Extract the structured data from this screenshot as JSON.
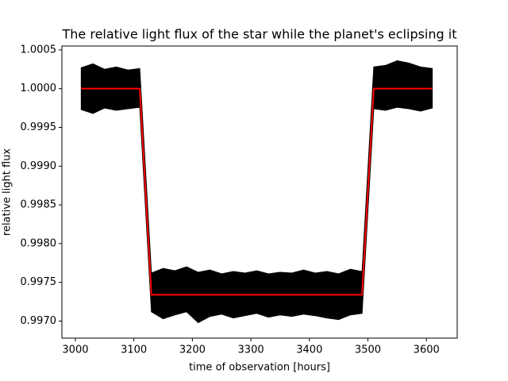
{
  "chart_data": {
    "type": "line",
    "title": "The relative light flux of the star while the planet's eclipsing it",
    "x_label": "time of observation [hours]",
    "y_label": "relative light flux",
    "xlim": [
      2977,
      3652.6
    ],
    "ylim": [
      0.99678,
      1.00055
    ],
    "xticks": [
      3000,
      3100,
      3200,
      3300,
      3400,
      3500,
      3600
    ],
    "yticks": [
      1.0005,
      {
        "value": 1,
        "label": "1.0000"
      },
      0.9995,
      {
        "value": 0.999,
        "label": "0.9990"
      },
      0.9985,
      {
        "value": 0.998,
        "label": "0.9980"
      },
      0.9975,
      {
        "value": 0.997,
        "label": "0.9970"
      }
    ],
    "grid": false,
    "series": [
      {
        "color": "#000000",
        "x": [
          3010,
          3030,
          3050,
          3070,
          3090,
          3110,
          3130,
          3150,
          3170,
          3190,
          3210,
          3230,
          3250,
          3270,
          3290,
          3310,
          3330,
          3350,
          3370,
          3390,
          3410,
          3430,
          3450,
          3470,
          3490,
          3510,
          3530,
          3550,
          3570,
          3590,
          3610
        ],
        "high": [
          1.00027,
          1.00032,
          1.00025,
          1.00028,
          1.00024,
          1.00026,
          0.99762,
          0.99768,
          0.99765,
          0.9977,
          0.99763,
          0.99766,
          0.99761,
          0.99764,
          0.99762,
          0.99765,
          0.99761,
          0.99763,
          0.99762,
          0.99766,
          0.99762,
          0.99764,
          0.99761,
          0.99767,
          0.99764,
          1.00028,
          1.0003,
          1.00036,
          1.00033,
          1.00028,
          1.00026
        ],
        "low": [
          0.99973,
          0.99968,
          0.99975,
          0.99972,
          0.99974,
          0.99976,
          0.99712,
          0.99703,
          0.99708,
          0.99712,
          0.99698,
          0.99706,
          0.99709,
          0.99704,
          0.99707,
          0.9971,
          0.99705,
          0.99708,
          0.99706,
          0.99709,
          0.99707,
          0.99704,
          0.99702,
          0.99708,
          0.9971,
          0.99974,
          0.99972,
          0.99976,
          0.99974,
          0.99971,
          0.99975
        ]
      },
      {
        "color": "#ff0000",
        "x": [
          3010,
          3110,
          3130,
          3490,
          3510,
          3610
        ],
        "values": [
          1,
          1,
          0.99734,
          0.99734,
          1,
          1
        ]
      }
    ]
  }
}
